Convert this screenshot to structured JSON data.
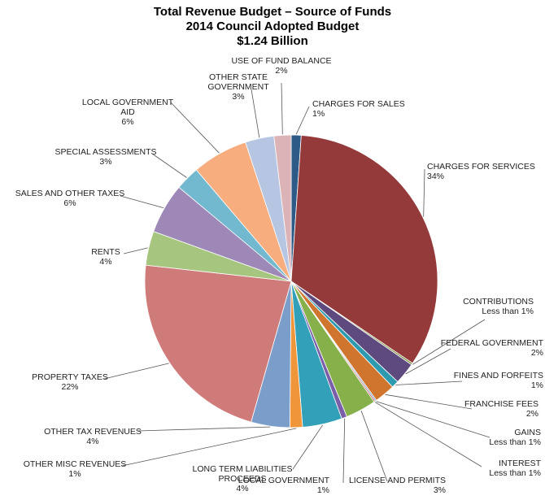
{
  "chart_data": {
    "type": "pie",
    "title": [
      "Total Revenue Budget – Source of Funds",
      "2014 Council Adopted Budget",
      "$1.24 Billion"
    ],
    "slices": [
      {
        "label": [
          "CHARGES FOR SALES"
        ],
        "pct_label": "1%",
        "value": 1.1,
        "color": "#2e5a87"
      },
      {
        "label": [
          "CHARGES FOR SERVICES"
        ],
        "pct_label": "34%",
        "value": 33.6,
        "color": "#953a3a"
      },
      {
        "label": [
          "CONTRIBUTIONS"
        ],
        "pct_label": "Less than 1%",
        "value": 0.2,
        "color": "#7a8a3a"
      },
      {
        "label": [
          "FEDERAL GOVERNMENT"
        ],
        "pct_label": "2%",
        "value": 2.4,
        "color": "#5e4a7e"
      },
      {
        "label": [
          "FINES AND FORFEITS"
        ],
        "pct_label": "1%",
        "value": 0.8,
        "color": "#2e9ab0"
      },
      {
        "label": [
          "FRANCHISE FEES"
        ],
        "pct_label": "2%",
        "value": 2.3,
        "color": "#d0752e"
      },
      {
        "label": [
          "GAINS"
        ],
        "pct_label": "Less than 1%",
        "value": 0.15,
        "color": "#6f8fbd"
      },
      {
        "label": [
          "INTEREST"
        ],
        "pct_label": "Less than 1%",
        "value": 0.15,
        "color": "#c0504d"
      },
      {
        "label": [
          "LICENSE AND PERMITS"
        ],
        "pct_label": "3%",
        "value": 3.4,
        "color": "#86b04a"
      },
      {
        "label": [
          "LOCAL GOVERNMENT"
        ],
        "pct_label": "1%",
        "value": 0.6,
        "color": "#7b5ea8"
      },
      {
        "label": [
          "LONG TERM LIABILITIES",
          "PROCEEDS"
        ],
        "pct_label": "4%",
        "value": 4.4,
        "color": "#31a0b8"
      },
      {
        "label": [
          "OTHER MISC REVENUES"
        ],
        "pct_label": "1%",
        "value": 1.4,
        "color": "#f0963a"
      },
      {
        "label": [
          "OTHER TAX REVENUES"
        ],
        "pct_label": "4%",
        "value": 4.3,
        "color": "#7b9dca"
      },
      {
        "label": [
          "PROPERTY TAXES"
        ],
        "pct_label": "22%",
        "value": 22.5,
        "color": "#cf7b79"
      },
      {
        "label": [
          "RENTS"
        ],
        "pct_label": "4%",
        "value": 3.8,
        "color": "#a6c57e"
      },
      {
        "label": [
          "SALES AND OTHER TAXES"
        ],
        "pct_label": "6%",
        "value": 5.6,
        "color": "#9d88b8"
      },
      {
        "label": [
          "SPECIAL ASSESSMENTS"
        ],
        "pct_label": "3%",
        "value": 2.7,
        "color": "#72b8cf"
      },
      {
        "label": [
          "LOCAL GOVERNMENT",
          "AID"
        ],
        "pct_label": "6%",
        "value": 6.2,
        "color": "#f7ad7e"
      },
      {
        "label": [
          "OTHER STATE",
          "GOVERNMENT"
        ],
        "pct_label": "3%",
        "value": 3.2,
        "color": "#b5c5e2"
      },
      {
        "label": [
          "USE OF FUND BALANCE"
        ],
        "pct_label": "2%",
        "value": 1.9,
        "color": "#dcb3b6"
      }
    ]
  }
}
